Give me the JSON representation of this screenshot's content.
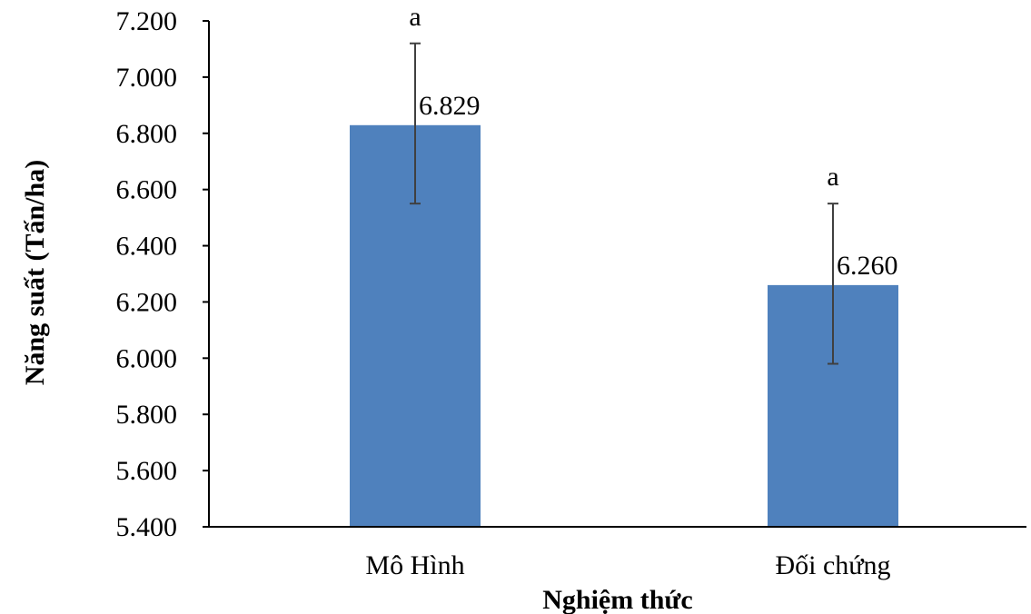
{
  "chart_data": {
    "type": "bar",
    "categories": [
      "Mô Hình",
      "Đối chứng"
    ],
    "values": [
      6.829,
      6.26
    ],
    "value_labels": [
      "6.829",
      "6.260"
    ],
    "error_bars": {
      "upper": [
        7.12,
        6.55
      ],
      "lower": [
        6.55,
        5.98
      ]
    },
    "significance_labels": [
      "a",
      "a"
    ],
    "xlabel": "Nghiệm thức",
    "ylabel": "Năng suất (Tấn/ha)",
    "ylim": [
      5.4,
      7.2
    ],
    "yticks": [
      5.4,
      5.6,
      5.8,
      6.0,
      6.2,
      6.4,
      6.6,
      6.8,
      7.0,
      7.2
    ],
    "ytick_labels": [
      "5.400",
      "5.600",
      "5.800",
      "6.000",
      "6.200",
      "6.400",
      "6.600",
      "6.800",
      "7.000",
      "7.200"
    ],
    "bar_color": "#4F81BD",
    "grid": false,
    "legend": "none"
  }
}
